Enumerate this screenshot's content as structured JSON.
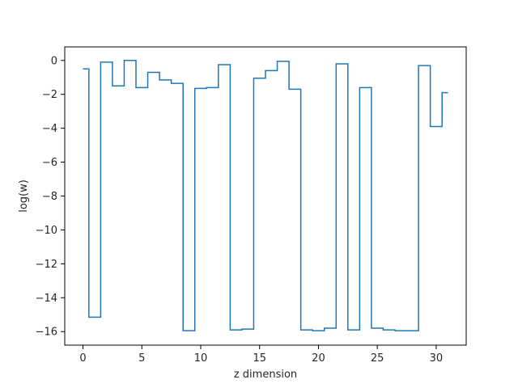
{
  "chart_data": {
    "type": "line",
    "step": "mid",
    "title": "",
    "xlabel": "z dimension",
    "ylabel": "log(w)",
    "xlim": [
      -1.55,
      32.55
    ],
    "ylim": [
      -16.8,
      0.8
    ],
    "xticks": [
      0,
      5,
      10,
      15,
      20,
      25,
      30
    ],
    "yticks": [
      0,
      -2,
      -4,
      -6,
      -8,
      -10,
      -12,
      -14,
      -16
    ],
    "ytick_labels": [
      "0",
      "−2",
      "−4",
      "−6",
      "−8",
      "−10",
      "−12",
      "−14",
      "−16"
    ],
    "grid": false,
    "legend": "none",
    "series": [
      {
        "color": "#1f77b4",
        "x": [
          0,
          1,
          2,
          3,
          4,
          5,
          6,
          7,
          8,
          9,
          10,
          11,
          12,
          13,
          14,
          15,
          16,
          17,
          18,
          19,
          20,
          21,
          22,
          23,
          24,
          25,
          26,
          27,
          28,
          29,
          30,
          31
        ],
        "y": [
          -0.5,
          -15.15,
          -0.1,
          -1.5,
          0.0,
          -1.6,
          -0.7,
          -1.15,
          -1.35,
          -15.95,
          -1.65,
          -1.6,
          -0.25,
          -15.9,
          -15.85,
          -1.05,
          -0.6,
          -0.05,
          -1.7,
          -15.9,
          -15.95,
          -15.8,
          -0.2,
          -15.9,
          -1.6,
          -15.8,
          -15.9,
          -15.95,
          -15.95,
          -0.3,
          -3.9,
          -1.9
        ]
      }
    ]
  }
}
